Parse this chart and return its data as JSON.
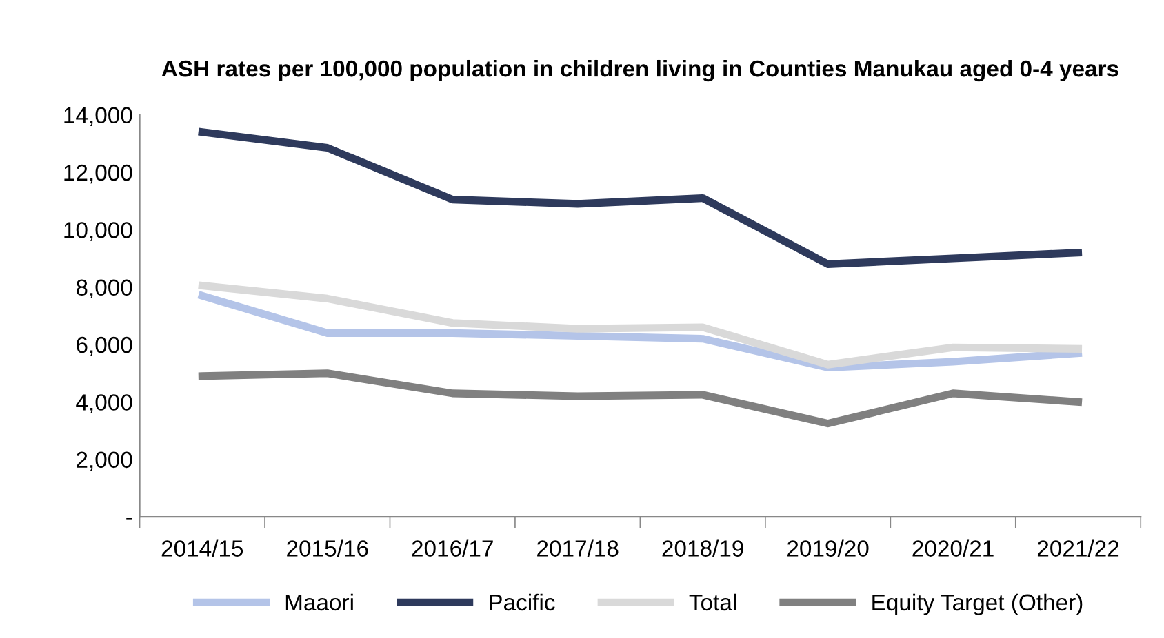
{
  "chart_data": {
    "type": "line",
    "title": "ASH rates per 100,000 population in children living in Counties Manukau aged 0-4 years",
    "categories": [
      "2014/15",
      "2015/16",
      "2016/17",
      "2017/18",
      "2018/19",
      "2019/20",
      "2020/21",
      "2021/22"
    ],
    "series": [
      {
        "name": "Maaori",
        "color": "#b4c4e8",
        "values": [
          7700,
          6400,
          6400,
          6300,
          6200,
          5200,
          5400,
          5700
        ]
      },
      {
        "name": "Pacific",
        "color": "#2e3a5c",
        "values": [
          13400,
          12850,
          11050,
          10900,
          11100,
          8800,
          9000,
          9200
        ]
      },
      {
        "name": "Total",
        "color": "#d9d9d9",
        "values": [
          8050,
          7600,
          6750,
          6550,
          6600,
          5300,
          5900,
          5850
        ]
      },
      {
        "name": "Equity Target (Other)",
        "color": "#808080",
        "values": [
          4900,
          5000,
          4300,
          4200,
          4250,
          3250,
          4300,
          4000
        ]
      }
    ],
    "ylim": [
      0,
      14000
    ],
    "yticks": [
      {
        "value": 0,
        "label": "-"
      },
      {
        "value": 2000,
        "label": "2,000"
      },
      {
        "value": 4000,
        "label": "4,000"
      },
      {
        "value": 6000,
        "label": "6,000"
      },
      {
        "value": 8000,
        "label": "8,000"
      },
      {
        "value": 10000,
        "label": "10,000"
      },
      {
        "value": 12000,
        "label": "12,000"
      },
      {
        "value": 14000,
        "label": "14,000"
      }
    ],
    "grid": false,
    "legend": "bottom",
    "marker": "none",
    "line_style": "solid"
  }
}
